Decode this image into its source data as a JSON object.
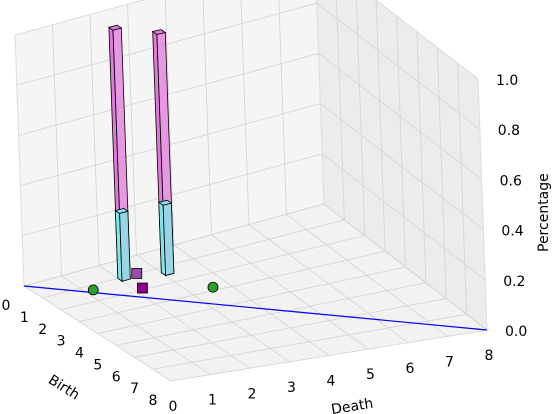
{
  "chart_data": {
    "type": "bar3d",
    "title": "",
    "xlabel": "Birth",
    "ylabel": "Death",
    "zlabel": "Percentage",
    "xlim": [
      0,
      8
    ],
    "ylim": [
      0,
      8
    ],
    "zlim": [
      0,
      1
    ],
    "x_ticks": [
      "0",
      "1",
      "2",
      "3",
      "4",
      "5",
      "6",
      "7",
      "8"
    ],
    "y_ticks": [
      "0",
      "1",
      "2",
      "3",
      "4",
      "5",
      "6",
      "7",
      "8"
    ],
    "z_ticks": [
      "0.0",
      "0.2",
      "0.4",
      "0.6",
      "0.8",
      "1.0"
    ],
    "grid": true,
    "diagonal_line": {
      "from": [
        0,
        0
      ],
      "to": [
        8,
        8
      ],
      "color": "#0000ff"
    },
    "bars": [
      {
        "x": 1.0,
        "y": 2.0,
        "height": 1.0,
        "color": "#e07ad8"
      },
      {
        "x": 1.0,
        "y": 2.0,
        "height": 0.27,
        "color": "#7fe9e9"
      },
      {
        "x": 1.3,
        "y": 3.0,
        "height": 0.96,
        "color": "#e07ad8"
      },
      {
        "x": 1.3,
        "y": 3.0,
        "height": 0.28,
        "color": "#7fe9e9"
      }
    ],
    "points": [
      {
        "x": 1.3,
        "y": 1.2,
        "marker": "circle",
        "color": "#2ca02c"
      },
      {
        "x": 2.8,
        "y": 3.6,
        "marker": "circle",
        "color": "#2ca02c"
      },
      {
        "x": 1.0,
        "y": 2.5,
        "marker": "square",
        "color": "#9b4dae"
      },
      {
        "x": 1.9,
        "y": 2.2,
        "marker": "square",
        "color": "#8b008b"
      }
    ]
  }
}
